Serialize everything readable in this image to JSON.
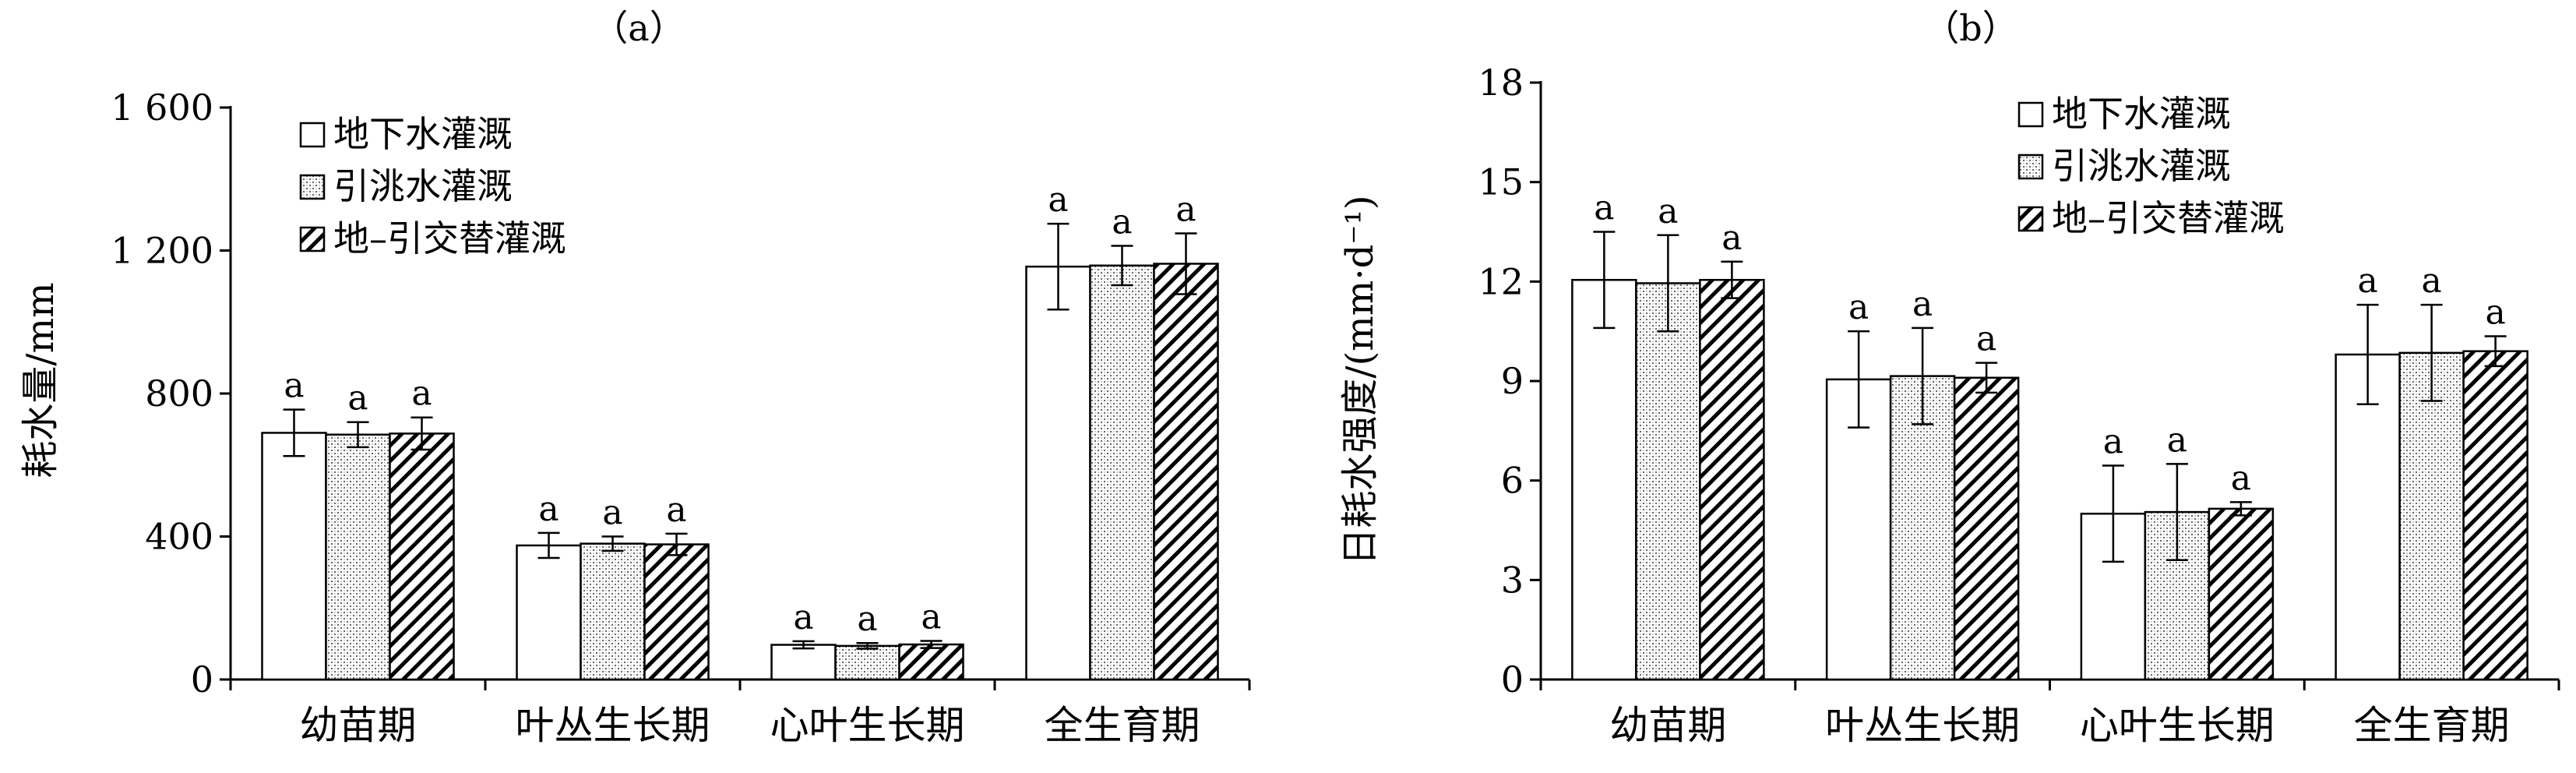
{
  "chart_data": [
    {
      "type": "bar",
      "title": "（a）",
      "ylabel": "耗水量/mm",
      "xlabel": "",
      "ylim": [
        0,
        1600
      ],
      "yticks": [
        0,
        400,
        800,
        1200,
        1600
      ],
      "ytick_labels": [
        "0",
        "400",
        "800",
        "1 200",
        "1 600"
      ],
      "categories": [
        "幼苗期",
        "叶丛生长期",
        "心叶生长期",
        "全生育期"
      ],
      "series": [
        {
          "name": "地下水灌溉",
          "pattern": "blank",
          "values": [
            690,
            375,
            97,
            1155
          ],
          "errors": [
            65,
            35,
            10,
            120
          ],
          "sig": [
            "a",
            "a",
            "a",
            "a"
          ]
        },
        {
          "name": "引洮水灌溉",
          "pattern": "dotted",
          "values": [
            685,
            380,
            94,
            1158
          ],
          "errors": [
            35,
            20,
            8,
            55
          ],
          "sig": [
            "a",
            "a",
            "a",
            "a"
          ]
        },
        {
          "name": "地–引交替灌溉",
          "pattern": "hatched",
          "values": [
            688,
            378,
            98,
            1163
          ],
          "errors": [
            45,
            30,
            10,
            85
          ],
          "sig": [
            "a",
            "a",
            "a",
            "a"
          ]
        }
      ],
      "legend_position": "top-left"
    },
    {
      "type": "bar",
      "title": "（b）",
      "ylabel": "日耗水强度/(mm·d⁻¹)",
      "xlabel": "",
      "ylim": [
        0,
        18
      ],
      "yticks": [
        0,
        3,
        6,
        9,
        12,
        15,
        18
      ],
      "ytick_labels": [
        "0",
        "3",
        "6",
        "9",
        "12",
        "15",
        "18"
      ],
      "categories": [
        "幼苗期",
        "叶丛生长期",
        "心叶生长期",
        "全生育期"
      ],
      "series": [
        {
          "name": "地下水灌溉",
          "pattern": "blank",
          "values": [
            12.05,
            9.05,
            5.0,
            9.8
          ],
          "errors": [
            1.45,
            1.45,
            1.45,
            1.5
          ],
          "sig": [
            "a",
            "a",
            "a",
            "a"
          ]
        },
        {
          "name": "引洮水灌溉",
          "pattern": "dotted",
          "values": [
            11.95,
            9.15,
            5.05,
            9.85
          ],
          "errors": [
            1.45,
            1.45,
            1.45,
            1.45
          ],
          "sig": [
            "a",
            "a",
            "a",
            "a"
          ]
        },
        {
          "name": "地–引交替灌溉",
          "pattern": "hatched",
          "values": [
            12.05,
            9.1,
            5.15,
            9.9
          ],
          "errors": [
            0.55,
            0.45,
            0.2,
            0.45
          ],
          "sig": [
            "a",
            "a",
            "a",
            "a"
          ]
        }
      ],
      "legend_position": "top-right"
    }
  ]
}
